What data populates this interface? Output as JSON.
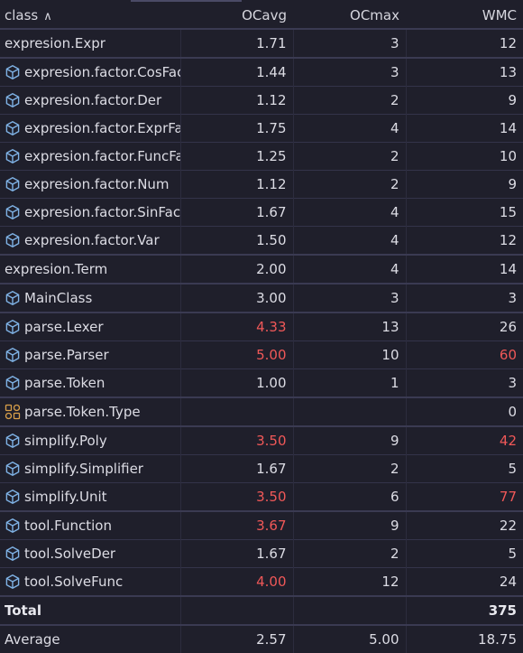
{
  "header": {
    "class": "class",
    "sort_icon": "chevron-up-icon",
    "ocavg": "OCavg",
    "ocmax": "OCmax",
    "wmc": "WMC"
  },
  "colors": {
    "background": "#1f1f2b",
    "warning": "#f05858",
    "class_icon": "#7fb2e5",
    "enum_icon": "#d9a04a"
  },
  "rows": [
    {
      "name": "expresion.Expr",
      "icon": "none",
      "ocavg": "1.71",
      "ocmax": "3",
      "wmc": "12"
    },
    {
      "name": "expresion.factor.CosFactor",
      "icon": "class-icon",
      "ocavg": "1.44",
      "ocmax": "3",
      "wmc": "13"
    },
    {
      "name": "expresion.factor.Der",
      "icon": "class-icon",
      "ocavg": "1.12",
      "ocmax": "2",
      "wmc": "9"
    },
    {
      "name": "expresion.factor.ExprFactor",
      "icon": "class-icon",
      "ocavg": "1.75",
      "ocmax": "4",
      "wmc": "14"
    },
    {
      "name": "expresion.factor.FuncFactor",
      "icon": "class-icon",
      "ocavg": "1.25",
      "ocmax": "2",
      "wmc": "10"
    },
    {
      "name": "expresion.factor.Num",
      "icon": "class-icon",
      "ocavg": "1.12",
      "ocmax": "2",
      "wmc": "9"
    },
    {
      "name": "expresion.factor.SinFactor",
      "icon": "class-icon",
      "ocavg": "1.67",
      "ocmax": "4",
      "wmc": "15"
    },
    {
      "name": "expresion.factor.Var",
      "icon": "class-icon",
      "ocavg": "1.50",
      "ocmax": "4",
      "wmc": "12"
    },
    {
      "name": "expresion.Term",
      "icon": "none",
      "ocavg": "2.00",
      "ocmax": "4",
      "wmc": "14"
    },
    {
      "name": "MainClass",
      "icon": "class-icon",
      "ocavg": "3.00",
      "ocmax": "3",
      "wmc": "3"
    },
    {
      "name": "parse.Lexer",
      "icon": "class-icon",
      "ocavg": "4.33",
      "ocmax": "13",
      "wmc": "26",
      "ocavg_warn": true
    },
    {
      "name": "parse.Parser",
      "icon": "class-icon",
      "ocavg": "5.00",
      "ocmax": "10",
      "wmc": "60",
      "ocavg_warn": true,
      "wmc_warn": true
    },
    {
      "name": "parse.Token",
      "icon": "class-icon",
      "ocavg": "1.00",
      "ocmax": "1",
      "wmc": "3"
    },
    {
      "name": "parse.Token.Type",
      "icon": "enum-icon",
      "ocavg": "",
      "ocmax": "",
      "wmc": "0"
    },
    {
      "name": "simplify.Poly",
      "icon": "class-icon",
      "ocavg": "3.50",
      "ocmax": "9",
      "wmc": "42",
      "ocavg_warn": true,
      "wmc_warn": true
    },
    {
      "name": "simplify.Simplifier",
      "icon": "class-icon",
      "ocavg": "1.67",
      "ocmax": "2",
      "wmc": "5"
    },
    {
      "name": "simplify.Unit",
      "icon": "class-icon",
      "ocavg": "3.50",
      "ocmax": "6",
      "wmc": "77",
      "ocavg_warn": true,
      "wmc_warn": true
    },
    {
      "name": "tool.Function",
      "icon": "class-icon",
      "ocavg": "3.67",
      "ocmax": "9",
      "wmc": "22",
      "ocavg_warn": true
    },
    {
      "name": "tool.SolveDer",
      "icon": "class-icon",
      "ocavg": "1.67",
      "ocmax": "2",
      "wmc": "5"
    },
    {
      "name": "tool.SolveFunc",
      "icon": "class-icon",
      "ocavg": "4.00",
      "ocmax": "12",
      "wmc": "24",
      "ocavg_warn": true
    }
  ],
  "total": {
    "label": "Total",
    "ocavg": "",
    "ocmax": "",
    "wmc": "375"
  },
  "average": {
    "label": "Average",
    "ocavg": "2.57",
    "ocmax": "5.00",
    "wmc": "18.75"
  }
}
